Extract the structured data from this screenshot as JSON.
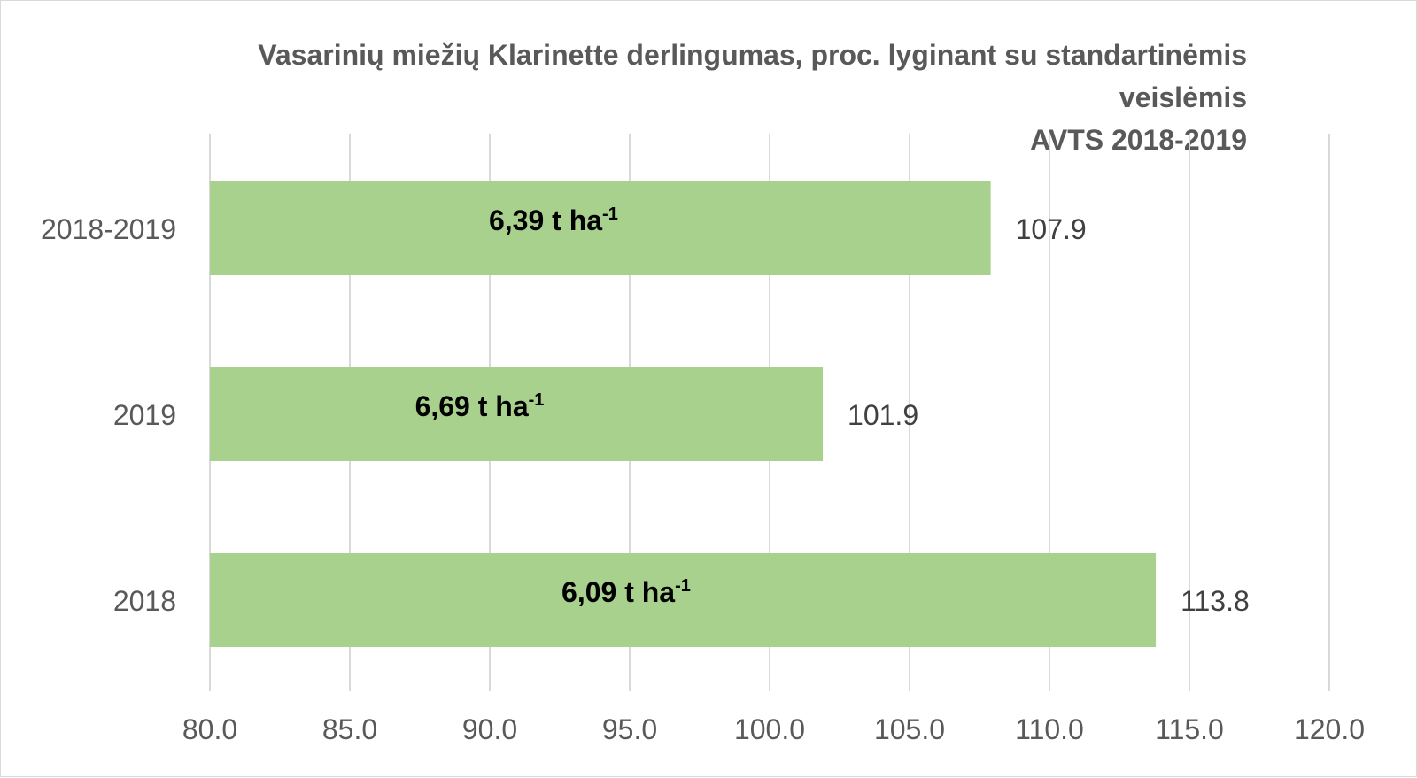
{
  "colors": {
    "bar": "#a9d18e",
    "grid": "#d9d9d9",
    "text": "#595959",
    "value_text": "#404040",
    "inbar_text": "#000000"
  },
  "chart_data": {
    "type": "bar",
    "orientation": "horizontal",
    "title_lines": [
      "Vasarinių miežių Klarinette derlingumas, proc. lyginant su standartinėmis",
      "veislėmis",
      "AVTS 2018-2019"
    ],
    "categories": [
      "2018-2019",
      "2019",
      "2018"
    ],
    "values": [
      107.9,
      101.9,
      113.8
    ],
    "value_labels": [
      "107.9",
      "101.9",
      "113.8"
    ],
    "bar_annotations": [
      {
        "main": "6,39 t ha",
        "sup": "-1"
      },
      {
        "main": "6,69 t ha",
        "sup": "-1"
      },
      {
        "main": "6,09 t ha",
        "sup": "-1"
      }
    ],
    "xlim": [
      80,
      120
    ],
    "x_ticks": [
      80,
      85,
      90,
      95,
      100,
      105,
      110,
      115,
      120
    ],
    "x_tick_labels": [
      "80.0",
      "85.0",
      "90.0",
      "95.0",
      "100.0",
      "105.0",
      "110.0",
      "115.0",
      "120.0"
    ],
    "grid": true,
    "legend": "none"
  }
}
